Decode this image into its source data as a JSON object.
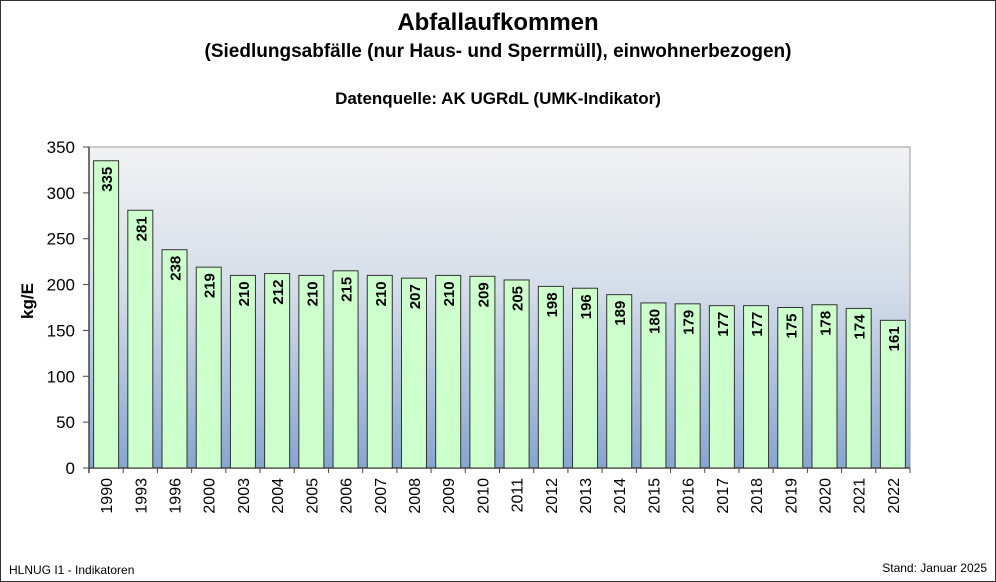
{
  "chart_data": {
    "type": "bar",
    "title": "Abfallaufkommen",
    "subtitle": "(Siedlungsabfälle (nur Haus- und Sperrmüll), einwohnerbezogen)",
    "source": "Datenquelle: AK UGRdL (UMK-Indikator)",
    "xlabel": "",
    "ylabel": "kg/E",
    "ylim": [
      0,
      350
    ],
    "yticks": [
      0,
      50,
      100,
      150,
      200,
      250,
      300,
      350
    ],
    "categories": [
      "1990",
      "1993",
      "1996",
      "2000",
      "2003",
      "2004",
      "2005",
      "2006",
      "2007",
      "2008",
      "2009",
      "2010",
      "2011",
      "2012",
      "2013",
      "2014",
      "2015",
      "2016",
      "2017",
      "2018",
      "2019",
      "2020",
      "2021",
      "2022"
    ],
    "values": [
      335,
      281,
      238,
      219,
      210,
      212,
      210,
      215,
      210,
      207,
      210,
      209,
      205,
      198,
      196,
      189,
      180,
      179,
      177,
      177,
      175,
      178,
      174,
      161
    ],
    "bar_color": "#ccffcc",
    "grid": false
  },
  "footer": {
    "left": "HLNUG I1  - Indikatoren",
    "right": "Stand: Januar 2025"
  }
}
